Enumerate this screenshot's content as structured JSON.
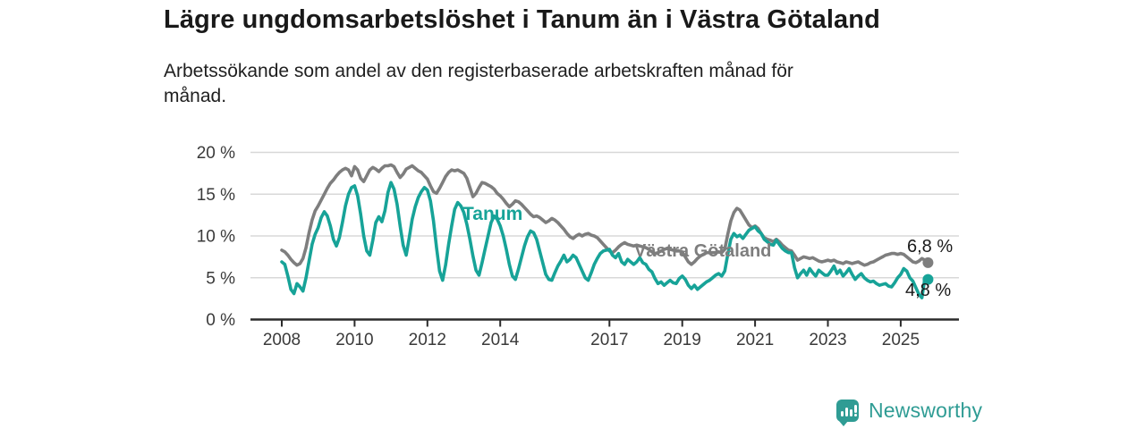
{
  "header": {
    "title": "Lägre ungdomsarbetslöshet i Tanum än i Västra Götaland",
    "subtitle_line1": "Arbetssökande som andel av den registerbaserade arbetskraften månad för",
    "subtitle_line2": "månad."
  },
  "colors": {
    "tanum": "#17a398",
    "vastra_gotaland": "#7e7e7e",
    "axis": "#2b2b2b",
    "grid": "#d8d8d8",
    "tick_text": "#3a3a3a",
    "end_label_text": "#1a1a1a",
    "brand_teal": "#2f9c94"
  },
  "chart_data": {
    "type": "line",
    "x_start_year": 2008,
    "x_step_months": 1,
    "xlim": [
      2007.5,
      2026.5
    ],
    "ylim": [
      0,
      20
    ],
    "grid": "horizontal",
    "legend_position": "inline-labels",
    "x_ticks": [
      {
        "value": 2008,
        "label": "2008"
      },
      {
        "value": 2010,
        "label": "2010"
      },
      {
        "value": 2012,
        "label": "2012"
      },
      {
        "value": 2014,
        "label": "2014"
      },
      {
        "value": 2017,
        "label": "2017"
      },
      {
        "value": 2019,
        "label": "2019"
      },
      {
        "value": 2021,
        "label": "2021"
      },
      {
        "value": 2023,
        "label": "2023"
      },
      {
        "value": 2025,
        "label": "2025"
      }
    ],
    "y_ticks": [
      {
        "value": 0,
        "label": "0 %"
      },
      {
        "value": 5,
        "label": "5 %"
      },
      {
        "value": 10,
        "label": "10 %"
      },
      {
        "value": 15,
        "label": "15 %"
      },
      {
        "value": 20,
        "label": "20 %"
      }
    ],
    "series": [
      {
        "name": "Västra Götaland",
        "color": "#7e7e7e",
        "end_label": "6,8 %",
        "values": [
          8.3,
          8.1,
          7.7,
          7.2,
          6.8,
          6.5,
          6.7,
          7.3,
          8.6,
          10.4,
          11.9,
          13.0,
          13.6,
          14.3,
          15.0,
          15.7,
          16.3,
          16.7,
          17.2,
          17.6,
          17.9,
          18.1,
          17.9,
          17.2,
          18.3,
          17.9,
          16.9,
          16.5,
          17.2,
          17.9,
          18.2,
          18.0,
          17.7,
          18.1,
          18.4,
          18.4,
          18.5,
          18.3,
          17.6,
          17.0,
          17.4,
          18.0,
          18.2,
          18.4,
          18.1,
          17.8,
          17.6,
          17.2,
          16.8,
          16.0,
          15.3,
          15.1,
          15.7,
          16.4,
          17.1,
          17.6,
          17.9,
          17.8,
          17.9,
          17.7,
          17.5,
          16.9,
          15.8,
          14.7,
          15.1,
          15.8,
          16.4,
          16.3,
          16.1,
          15.9,
          15.6,
          15.1,
          14.8,
          14.4,
          13.9,
          13.5,
          13.8,
          14.2,
          14.1,
          13.8,
          13.4,
          13.0,
          12.6,
          12.3,
          12.4,
          12.2,
          11.9,
          11.6,
          11.8,
          12.1,
          11.9,
          11.6,
          11.2,
          10.8,
          10.3,
          9.9,
          9.7,
          10.0,
          10.2,
          10.0,
          10.2,
          10.3,
          10.1,
          10.0,
          9.8,
          9.4,
          9.0,
          8.6,
          8.2,
          8.0,
          8.3,
          8.7,
          9.0,
          9.2,
          9.0,
          8.9,
          8.8,
          8.9,
          8.8,
          8.7,
          8.6,
          8.4,
          8.1,
          7.9,
          8.0,
          8.2,
          8.4,
          8.5,
          8.4,
          8.3,
          8.2,
          8.2,
          8.1,
          7.5,
          6.9,
          6.6,
          6.9,
          7.3,
          7.6,
          7.8,
          8.0,
          8.0,
          8.0,
          8.0,
          8.1,
          8.0,
          8.4,
          10.2,
          11.8,
          12.8,
          13.3,
          13.1,
          12.5,
          11.9,
          11.3,
          11.0,
          11.2,
          10.9,
          10.3,
          9.8,
          9.6,
          9.5,
          9.3,
          9.6,
          9.3,
          8.9,
          8.6,
          8.3,
          8.2,
          7.7,
          7.1,
          7.3,
          7.5,
          7.4,
          7.3,
          7.4,
          7.2,
          7.0,
          6.9,
          7.0,
          7.1,
          7.0,
          7.1,
          6.9,
          6.8,
          6.7,
          6.9,
          6.8,
          6.7,
          6.8,
          6.9,
          6.7,
          6.5,
          6.6,
          6.8,
          6.9,
          7.1,
          7.3,
          7.5,
          7.7,
          7.8,
          7.9,
          7.9,
          7.8,
          7.9,
          7.8,
          7.5,
          7.2,
          6.9,
          6.8,
          7.0,
          7.3,
          7.1,
          6.8
        ]
      },
      {
        "name": "Tanum",
        "color": "#17a398",
        "end_label": "4,8 %",
        "values": [
          6.9,
          6.6,
          5.2,
          3.6,
          3.1,
          4.3,
          3.9,
          3.4,
          5.0,
          7.0,
          9.0,
          10.2,
          11.0,
          12.2,
          12.9,
          12.4,
          11.2,
          9.6,
          8.8,
          9.8,
          11.6,
          13.6,
          15.0,
          15.8,
          16.0,
          14.8,
          12.6,
          10.0,
          8.2,
          7.7,
          9.5,
          11.6,
          12.3,
          11.7,
          13.0,
          15.2,
          16.4,
          15.6,
          13.8,
          11.2,
          8.9,
          7.7,
          9.8,
          12.0,
          13.5,
          14.6,
          15.3,
          15.8,
          15.5,
          14.2,
          11.8,
          8.6,
          5.8,
          4.7,
          6.5,
          9.0,
          11.2,
          13.2,
          14.0,
          13.6,
          12.8,
          11.4,
          9.6,
          7.6,
          5.9,
          5.3,
          6.8,
          8.4,
          10.0,
          11.6,
          12.4,
          12.0,
          11.2,
          10.0,
          8.4,
          6.6,
          5.2,
          4.8,
          6.0,
          7.4,
          8.8,
          9.9,
          10.6,
          10.4,
          9.6,
          8.2,
          6.8,
          5.4,
          4.8,
          4.7,
          5.6,
          6.4,
          7.0,
          7.7,
          6.9,
          7.2,
          7.7,
          7.4,
          6.6,
          5.8,
          5.0,
          4.7,
          5.6,
          6.6,
          7.3,
          7.9,
          8.2,
          8.3,
          8.4,
          7.7,
          7.4,
          7.9,
          6.9,
          6.6,
          7.2,
          6.9,
          6.6,
          6.9,
          7.4,
          6.8,
          6.6,
          6.0,
          5.7,
          4.9,
          4.3,
          4.5,
          4.1,
          4.4,
          4.7,
          4.4,
          4.3,
          4.9,
          5.2,
          4.8,
          4.1,
          3.7,
          4.1,
          3.6,
          3.9,
          4.2,
          4.5,
          4.7,
          5.0,
          5.3,
          5.5,
          5.2,
          5.8,
          7.8,
          9.6,
          10.3,
          9.9,
          10.1,
          9.7,
          10.2,
          10.7,
          10.9,
          11.1,
          10.6,
          10.3,
          9.6,
          9.3,
          9.0,
          8.9,
          9.5,
          9.0,
          8.5,
          8.2,
          8.0,
          8.0,
          6.2,
          5.0,
          5.5,
          5.9,
          5.3,
          6.1,
          5.6,
          5.2,
          5.9,
          5.6,
          5.3,
          5.3,
          5.8,
          6.4,
          5.5,
          5.9,
          5.2,
          5.6,
          6.1,
          5.4,
          4.8,
          5.2,
          5.5,
          5.0,
          4.7,
          4.5,
          4.6,
          4.3,
          4.1,
          4.2,
          4.3,
          4.0,
          3.9,
          4.4,
          5.0,
          5.4,
          6.1,
          5.8,
          5.0,
          4.6,
          3.8,
          3.0,
          2.6,
          5.0,
          4.8
        ]
      }
    ],
    "annotations": {
      "tanum_label": "Tanum",
      "vastra_gotaland_label": "Västra Götaland",
      "end_value_vastra_gotaland": "6,8 %",
      "end_value_tanum": "4,8 %"
    }
  },
  "footer": {
    "brand": "Newsworthy"
  }
}
